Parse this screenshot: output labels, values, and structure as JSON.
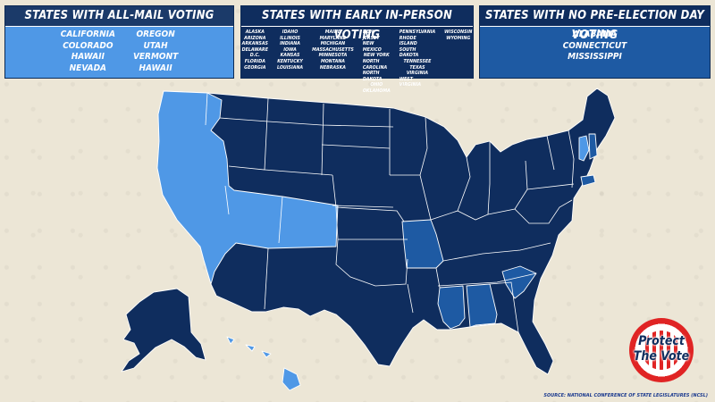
{
  "panels": {
    "all_mail": {
      "title": "States With All-Mail Voting",
      "color": "#4f98e6",
      "col1": [
        "California",
        "Colorado",
        "Hawaii",
        "Nevada"
      ],
      "col2": [
        "Oregon",
        "Utah",
        "Vermont",
        "Hawaii"
      ]
    },
    "early": {
      "title": "States With Early In-Person Voting",
      "color": "#0f2d5e",
      "col1": [
        "Alaska",
        "Arizona",
        "Arkansas",
        "Delaware",
        "D.C.",
        "Florida",
        "Georgia"
      ],
      "col2": [
        "Idaho",
        "Illinois",
        "Indiana",
        "Iowa",
        "Kansas",
        "Kentucky",
        "Louisiana"
      ],
      "col3": [
        "Maine",
        "Maryland",
        "Michigan",
        "Massachusetts",
        "Minnesota",
        "Montana",
        "Nebraska"
      ],
      "col4": [
        "New Jersey",
        "New Mexico",
        "New York",
        "North Carolina",
        "North Dakota",
        "Ohio",
        "Oklahoma"
      ],
      "col5": [
        "Pennsylvania",
        "Rhode Island",
        "South Dakota",
        "Tennessee",
        "Texas",
        "Virginia",
        "West Virginia"
      ],
      "col6": [
        "Wisconsin",
        "Wyoming"
      ]
    },
    "none": {
      "title": "States With No Pre-Election Day Voting",
      "color": "#1e5aa3",
      "col1": [
        "Alabama",
        "Connecticut",
        "Mississippi"
      ]
    }
  },
  "logo_text": [
    "Protect",
    "The Vote"
  ],
  "source": "Source: National Conference of State Legislatures (NCSL)"
}
